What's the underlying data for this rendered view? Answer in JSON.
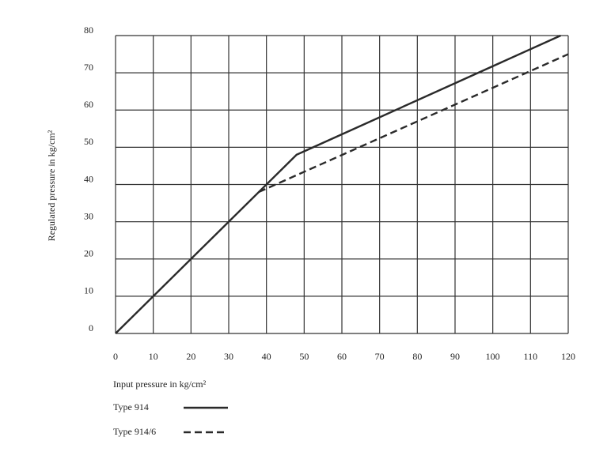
{
  "chart_data": {
    "type": "line",
    "x_label": "Input pressure in kg/cm²",
    "y_label": "Regulated pressure in kg/cm²",
    "xlim": [
      0,
      120
    ],
    "xticks": [
      0,
      10,
      20,
      30,
      40,
      50,
      60,
      70,
      80,
      90,
      100,
      110,
      120
    ],
    "ylim": [
      0,
      80
    ],
    "yticks": [
      0,
      10,
      20,
      30,
      40,
      50,
      60,
      70,
      80
    ],
    "grid": true,
    "series": [
      {
        "name": "Type 914",
        "color": "#2a2a2a",
        "line_style": "solid",
        "x": [
          0,
          48,
          118
        ],
        "values": [
          0,
          48,
          80
        ]
      },
      {
        "name": "Type 914/6",
        "color": "#2a2a2a",
        "line_style": "dashed",
        "x": [
          38,
          120
        ],
        "values": [
          38,
          75
        ]
      }
    ]
  }
}
